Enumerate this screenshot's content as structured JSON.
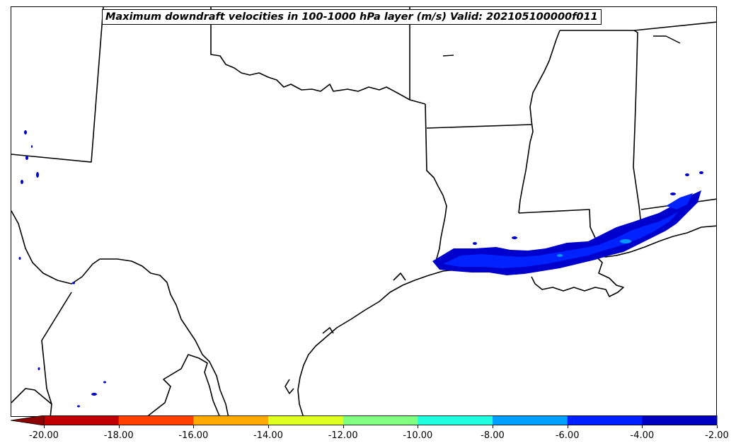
{
  "title": "Maximum downdraft velocities in 100-1000 hPa layer (m/s) Valid: 202105100000f011",
  "colorbar": {
    "ticks": [
      "-20.00",
      "-18.00",
      "-16.00",
      "-14.00",
      "-12.00",
      "-10.00",
      "-8.00",
      "-6.00",
      "-4.00",
      "-2.00"
    ],
    "colors": [
      "#c00000",
      "#ff4000",
      "#ffaa00",
      "#dfff20",
      "#80ff80",
      "#20ffdf",
      "#00a0ff",
      "#0020ff",
      "#0000c0"
    ],
    "extend_color": "#8b0000"
  },
  "shading": {
    "weak": "#0000cc",
    "moderate": "#0022ff",
    "strong": "#0099ff"
  },
  "map": {
    "region": "Texas / Louisiana / Gulf Coast",
    "border_color": "#000000"
  }
}
